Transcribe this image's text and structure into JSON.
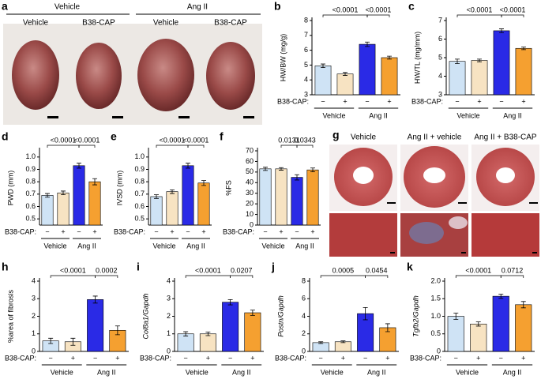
{
  "panel_a": {
    "label": "a",
    "groups": [
      "Vehicle",
      "Ang II"
    ],
    "columns": [
      "Vehicle",
      "B38-CAP",
      "Vehicle",
      "B38-CAP"
    ]
  },
  "panel_g": {
    "label": "g",
    "columns": [
      "Vehicle",
      "Ang II + vehicle",
      "Ang II + B38-CAP"
    ]
  },
  "chart_data": [
    {
      "type": "bar",
      "label": "b",
      "ylabel": "HW/BW (mg/g)",
      "categories": [
        "−",
        "+",
        "−",
        "+"
      ],
      "colors": [
        "#cfe3f5",
        "#f7e3c2",
        "#2a2ae6",
        "#f5a030"
      ],
      "values": [
        4.95,
        4.4,
        6.4,
        5.5
      ],
      "errors": [
        0.12,
        0.1,
        0.15,
        0.1
      ],
      "ylim": [
        3,
        8
      ],
      "yticks": [
        3,
        4,
        5,
        6,
        7,
        8
      ],
      "group_label": "B38-CAP:",
      "groups": [
        "Vehicle",
        "Ang II"
      ],
      "comparisons": [
        {
          "between": [
            0,
            2
          ],
          "label": "<0.0001"
        },
        {
          "between": [
            2,
            3
          ],
          "label": "<0.0001"
        }
      ]
    },
    {
      "type": "bar",
      "label": "c",
      "ylabel": "HW/TL (mg/mm)",
      "categories": [
        "−",
        "+",
        "−",
        "+"
      ],
      "colors": [
        "#cfe3f5",
        "#f7e3c2",
        "#2a2ae6",
        "#f5a030"
      ],
      "values": [
        4.8,
        4.85,
        6.45,
        5.5
      ],
      "errors": [
        0.12,
        0.07,
        0.1,
        0.07
      ],
      "ylim": [
        3,
        7
      ],
      "yticks": [
        3,
        4,
        5,
        6,
        7
      ],
      "group_label": "B38-CAP:",
      "groups": [
        "Vehicle",
        "Ang II"
      ],
      "comparisons": [
        {
          "between": [
            0,
            2
          ],
          "label": "<0.0001"
        },
        {
          "between": [
            2,
            3
          ],
          "label": "<0.0001"
        }
      ]
    },
    {
      "type": "bar",
      "label": "d",
      "ylabel": "PWD (mm)",
      "categories": [
        "−",
        "+",
        "−",
        "+"
      ],
      "colors": [
        "#cfe3f5",
        "#f7e3c2",
        "#2a2ae6",
        "#f5a030"
      ],
      "values": [
        0.69,
        0.71,
        0.93,
        0.8
      ],
      "errors": [
        0.015,
        0.015,
        0.02,
        0.025
      ],
      "ylim": [
        0.45,
        1.05
      ],
      "yticks": [
        0.5,
        0.6,
        0.7,
        0.8,
        0.9,
        {
          "value": 1,
          "label": "1.0"
        }
      ],
      "group_label": "B38-CAP:",
      "groups": [
        "Vehicle",
        "Ang II"
      ],
      "comparisons": [
        {
          "between": [
            0,
            2
          ],
          "label": "<0.0001"
        },
        {
          "between": [
            2,
            3
          ],
          "label": "<0.0001"
        }
      ]
    },
    {
      "type": "bar",
      "label": "e",
      "ylabel": "IVSD (mm)",
      "categories": [
        "−",
        "+",
        "−",
        "+"
      ],
      "colors": [
        "#cfe3f5",
        "#f7e3c2",
        "#2a2ae6",
        "#f5a030"
      ],
      "values": [
        0.68,
        0.72,
        0.93,
        0.79
      ],
      "errors": [
        0.015,
        0.015,
        0.02,
        0.02
      ],
      "ylim": [
        0.45,
        1.05
      ],
      "yticks": [
        0.5,
        0.6,
        0.7,
        0.8,
        0.9,
        {
          "value": 1,
          "label": "1.0"
        }
      ],
      "group_label": "B38-CAP:",
      "groups": [
        "Vehicle",
        "Ang II"
      ],
      "comparisons": [
        {
          "between": [
            0,
            2
          ],
          "label": "<0.0001"
        },
        {
          "between": [
            2,
            3
          ],
          "label": "<0.0001"
        }
      ]
    },
    {
      "type": "bar",
      "label": "f",
      "ylabel": "%FS",
      "categories": [
        "−",
        "+",
        "−",
        "+"
      ],
      "colors": [
        "#cfe3f5",
        "#f7e3c2",
        "#2a2ae6",
        "#f5a030"
      ],
      "values": [
        53,
        53,
        45,
        52
      ],
      "errors": [
        1.5,
        1.2,
        2.5,
        1.8
      ],
      "ylim": [
        0,
        70
      ],
      "yticks": [
        0,
        10,
        20,
        30,
        40,
        50,
        60,
        70
      ],
      "group_label": "B38-CAP:",
      "groups": [
        "Vehicle",
        "Ang II"
      ],
      "comparisons": [
        {
          "between": [
            1,
            2
          ],
          "label": "0.0131"
        },
        {
          "between": [
            2,
            3
          ],
          "label": "0.0343"
        }
      ]
    },
    {
      "type": "bar",
      "label": "h",
      "ylabel": "%area of fibrosis",
      "categories": [
        "−",
        "+",
        "−",
        "+"
      ],
      "colors": [
        "#cfe3f5",
        "#f7e3c2",
        "#2a2ae6",
        "#f5a030"
      ],
      "values": [
        0.6,
        0.55,
        2.95,
        1.2
      ],
      "errors": [
        0.15,
        0.2,
        0.2,
        0.25
      ],
      "ylim": [
        0,
        4
      ],
      "yticks": [
        0,
        1,
        2,
        3,
        4
      ],
      "group_label": "B38-CAP:",
      "groups": [
        "Vehicle",
        "Ang II"
      ],
      "comparisons": [
        {
          "between": [
            0,
            2
          ],
          "label": "<0.0001"
        },
        {
          "between": [
            2,
            3
          ],
          "label": "0.0002"
        }
      ]
    },
    {
      "type": "bar",
      "label": "i",
      "ylabel": "Col8a1/Gapdh",
      "italic": true,
      "categories": [
        "−",
        "+",
        "−",
        "+"
      ],
      "colors": [
        "#cfe3f5",
        "#f7e3c2",
        "#2a2ae6",
        "#f5a030"
      ],
      "values": [
        1.0,
        1.0,
        2.8,
        2.2
      ],
      "errors": [
        0.12,
        0.1,
        0.15,
        0.15
      ],
      "ylim": [
        0,
        4
      ],
      "yticks": [
        0,
        1,
        2,
        3,
        4
      ],
      "group_label": "B38-CAP:",
      "groups": [
        "Vehicle",
        "Ang II"
      ],
      "comparisons": [
        {
          "between": [
            0,
            2
          ],
          "label": "<0.0001"
        },
        {
          "between": [
            2,
            3
          ],
          "label": "0.0207"
        }
      ]
    },
    {
      "type": "bar",
      "label": "j",
      "ylabel": "Postn/Gapdh",
      "italic": true,
      "categories": [
        "−",
        "+",
        "−",
        "+"
      ],
      "colors": [
        "#cfe3f5",
        "#f7e3c2",
        "#2a2ae6",
        "#f5a030"
      ],
      "values": [
        1.0,
        1.1,
        4.3,
        2.7
      ],
      "errors": [
        0.1,
        0.1,
        0.7,
        0.45
      ],
      "ylim": [
        0,
        8
      ],
      "yticks": [
        0,
        2,
        4,
        6,
        8
      ],
      "group_label": "B38-CAP:",
      "groups": [
        "Vehicle",
        "Ang II"
      ],
      "comparisons": [
        {
          "between": [
            0,
            2
          ],
          "label": "0.0005"
        },
        {
          "between": [
            2,
            3
          ],
          "label": "0.0454"
        }
      ]
    },
    {
      "type": "bar",
      "label": "k",
      "ylabel": "Tgfb2/Gapdh",
      "italic": true,
      "categories": [
        "−",
        "+",
        "−",
        "+"
      ],
      "colors": [
        "#cfe3f5",
        "#f7e3c2",
        "#2a2ae6",
        "#f5a030"
      ],
      "values": [
        1.0,
        0.78,
        1.57,
        1.33
      ],
      "errors": [
        0.09,
        0.06,
        0.06,
        0.09
      ],
      "ylim": [
        0,
        2
      ],
      "yticks": [
        0,
        0.5,
        {
          "value": 1,
          "label": "1.0"
        },
        1.5,
        {
          "value": 2,
          "label": "2.0"
        }
      ],
      "group_label": "B38-CAP:",
      "groups": [
        "Vehicle",
        "Ang II"
      ],
      "comparisons": [
        {
          "between": [
            0,
            2
          ],
          "label": "<0.0001"
        },
        {
          "between": [
            2,
            3
          ],
          "label": "0.0712"
        }
      ]
    }
  ]
}
